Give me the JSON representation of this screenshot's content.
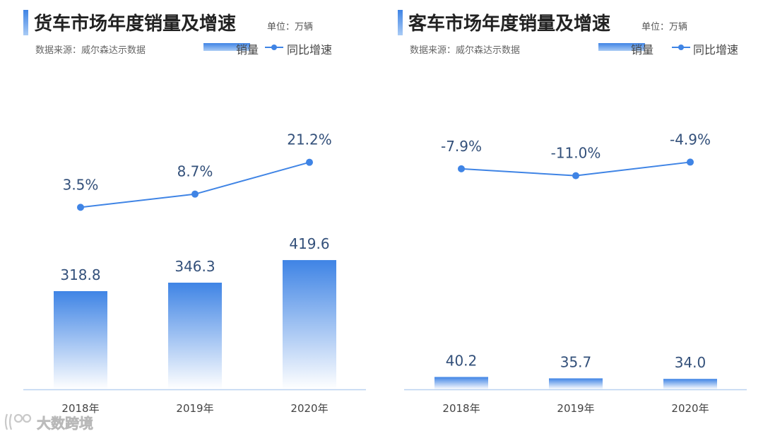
{
  "watermark": {
    "text": "大数跨境"
  },
  "chart_data": [
    {
      "type": "bar",
      "title": "货车市场年度销量及增速",
      "unit": "单位：万辆",
      "source": "数据来源：威尔森达示数据",
      "categories": [
        "2018年",
        "2019年",
        "2020年"
      ],
      "series": [
        {
          "name": "销量",
          "type": "bar",
          "values": [
            318.8,
            346.3,
            419.6
          ],
          "labels": [
            "318.8",
            "346.3",
            "419.6"
          ]
        },
        {
          "name": "同比增速",
          "type": "line",
          "values": [
            3.5,
            8.7,
            21.2
          ],
          "labels": [
            "3.5%",
            "8.7%",
            "21.2%"
          ]
        }
      ],
      "colors": {
        "bar_top": "#3f84e5",
        "bar_bottom": "#ffffff",
        "line": "#3f84e5",
        "label": "#33507a",
        "axis": "#b9d2f0"
      }
    },
    {
      "type": "bar",
      "title": "客车市场年度销量及增速",
      "unit": "单位：万辆",
      "source": "数据来源：威尔森达示数据",
      "categories": [
        "2018年",
        "2019年",
        "2020年"
      ],
      "series": [
        {
          "name": "销量",
          "type": "bar",
          "values": [
            40.2,
            35.7,
            34.0
          ],
          "labels": [
            "40.2",
            "35.7",
            "34.0"
          ]
        },
        {
          "name": "同比增速",
          "type": "line",
          "values": [
            -7.9,
            -11.0,
            -4.9
          ],
          "labels": [
            "-7.9%",
            "-11.0%",
            "-4.9%"
          ]
        }
      ],
      "colors": {
        "bar_top": "#3f84e5",
        "bar_bottom": "#ffffff",
        "line": "#3f84e5",
        "label": "#33507a",
        "axis": "#b9d2f0"
      }
    }
  ]
}
